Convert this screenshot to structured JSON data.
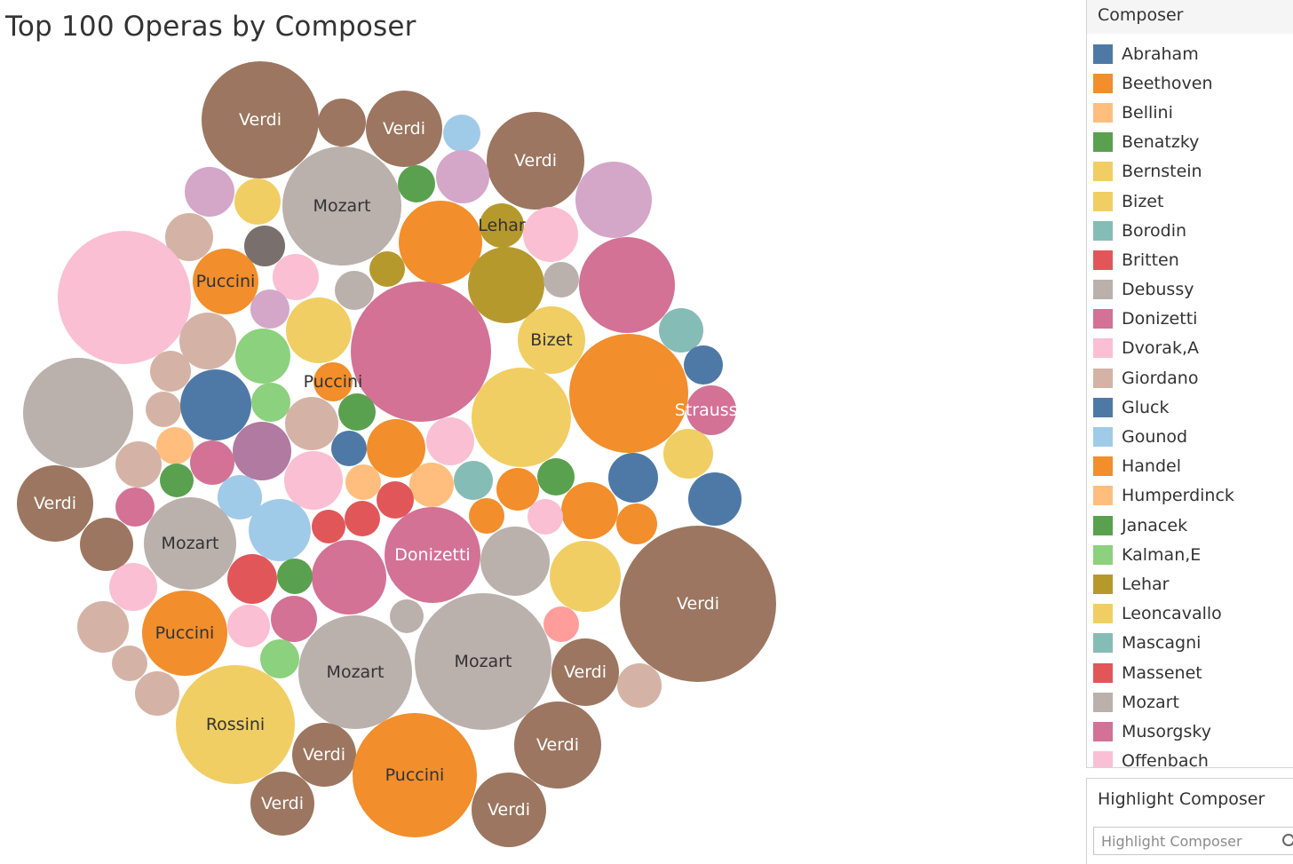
{
  "chart_data": {
    "type": "bubble",
    "title": "Top 100 Operas by Composer",
    "legend_placement": "right",
    "legend_title": "Composer",
    "legend": [
      {
        "name": "Abraham",
        "color": "#4e79a7"
      },
      {
        "name": "Beethoven",
        "color": "#f28e2b"
      },
      {
        "name": "Bellini",
        "color": "#ffbe7d"
      },
      {
        "name": "Benatzky",
        "color": "#59a14f"
      },
      {
        "name": "Bernstein",
        "color": "#f1ce63"
      },
      {
        "name": "Bizet",
        "color": "#f1ce63"
      },
      {
        "name": "Borodin",
        "color": "#86bcb6"
      },
      {
        "name": "Britten",
        "color": "#e15759"
      },
      {
        "name": "Debussy",
        "color": "#bab0ac"
      },
      {
        "name": "Donizetti",
        "color": "#d37295"
      },
      {
        "name": "Dvorak,A",
        "color": "#fabfd2"
      },
      {
        "name": "Giordano",
        "color": "#d4b3a6"
      },
      {
        "name": "Gluck",
        "color": "#4e79a7"
      },
      {
        "name": "Gounod",
        "color": "#a0cbe8"
      },
      {
        "name": "Handel",
        "color": "#f28e2b"
      },
      {
        "name": "Humperdinck",
        "color": "#ffbe7d"
      },
      {
        "name": "Janacek",
        "color": "#59a14f"
      },
      {
        "name": "Kalman,E",
        "color": "#8cd17d"
      },
      {
        "name": "Lehar",
        "color": "#b6992d"
      },
      {
        "name": "Leoncavallo",
        "color": "#f1ce63"
      },
      {
        "name": "Mascagni",
        "color": "#86bcb6"
      },
      {
        "name": "Massenet",
        "color": "#e15759"
      },
      {
        "name": "Mozart",
        "color": "#bab0ac"
      },
      {
        "name": "Musorgsky",
        "color": "#d37295"
      },
      {
        "name": "Offenbach",
        "color": "#fabfd2"
      }
    ],
    "bubbles": [
      {
        "label": "Verdi",
        "color": "#9c7660",
        "label_color": "#ffffff"
      },
      {
        "label": "",
        "color": "#9c7660"
      },
      {
        "label": "Verdi",
        "color": "#9c7660",
        "label_color": "#ffffff"
      },
      {
        "label": "",
        "color": "#a0cbe8"
      },
      {
        "label": "Verdi",
        "color": "#9c7660",
        "label_color": "#ffffff"
      },
      {
        "label": "",
        "color": "#d4a6c8"
      },
      {
        "label": "",
        "color": "#d4a6c8"
      },
      {
        "label": "",
        "color": "#f1ce63"
      },
      {
        "label": "Mozart",
        "color": "#bab0ac",
        "label_color": "#333333"
      },
      {
        "label": "",
        "color": "#59a14f"
      },
      {
        "label": "",
        "color": "#d4a6c8"
      },
      {
        "label": "",
        "color": "#d4b3a6"
      },
      {
        "label": "",
        "color": "#79706e"
      },
      {
        "label": "",
        "color": "#f28e2b"
      },
      {
        "label": "Lehar",
        "color": "#b6992d",
        "label_color": "#333333"
      },
      {
        "label": "",
        "color": "#fabfd2"
      },
      {
        "label": "",
        "color": "#fabfd2"
      },
      {
        "label": "Puccini",
        "color": "#f28e2b",
        "label_color": "#333333"
      },
      {
        "label": "",
        "color": "#fabfd2"
      },
      {
        "label": "",
        "color": "#bab0ac"
      },
      {
        "label": "",
        "color": "#b6992d"
      },
      {
        "label": "",
        "color": "#b6992d"
      },
      {
        "label": "",
        "color": "#f1ce63"
      },
      {
        "label": "",
        "color": "#d37295"
      },
      {
        "label": "",
        "color": "#d4a6c8"
      },
      {
        "label": "",
        "color": "#bab0ac"
      },
      {
        "label": "",
        "color": "#d37295"
      },
      {
        "label": "Bizet",
        "color": "#f1ce63",
        "label_color": "#333333"
      },
      {
        "label": "",
        "color": "#86bcb6"
      },
      {
        "label": "",
        "color": "#d4b3a6"
      },
      {
        "label": "",
        "color": "#8cd17d"
      },
      {
        "label": "",
        "color": "#4e79a7"
      },
      {
        "label": "",
        "color": "#d4b3a6"
      },
      {
        "label": "",
        "color": "#f28e2b"
      },
      {
        "label": "Puccini",
        "color": "#f28e2b",
        "label_color": "#333333"
      },
      {
        "label": "",
        "color": "#bab0ac"
      },
      {
        "label": "Strauss,J",
        "color": "#d37295",
        "label_color": "#ffffff"
      },
      {
        "label": "",
        "color": "#d4b3a6"
      },
      {
        "label": "",
        "color": "#4e79a7"
      },
      {
        "label": "",
        "color": "#8cd17d"
      },
      {
        "label": "",
        "color": "#d4b3a6"
      },
      {
        "label": "",
        "color": "#59a14f"
      },
      {
        "label": "",
        "color": "#f1ce63"
      },
      {
        "label": "",
        "color": "#ffbe7d"
      },
      {
        "label": "",
        "color": "#b07aa1"
      },
      {
        "label": "",
        "color": "#fabfd2"
      },
      {
        "label": "",
        "color": "#4e79a7"
      },
      {
        "label": "",
        "color": "#f28e2b"
      },
      {
        "label": "",
        "color": "#f1ce63"
      },
      {
        "label": "",
        "color": "#d4b3a6"
      },
      {
        "label": "",
        "color": "#d37295"
      },
      {
        "label": "",
        "color": "#59a14f"
      },
      {
        "label": "",
        "color": "#fabfd2"
      },
      {
        "label": "",
        "color": "#ffbe7d"
      },
      {
        "label": "",
        "color": "#ffbe7d"
      },
      {
        "label": "",
        "color": "#86bcb6"
      },
      {
        "label": "",
        "color": "#f28e2b"
      },
      {
        "label": "",
        "color": "#59a14f"
      },
      {
        "label": "",
        "color": "#4e79a7"
      },
      {
        "label": "",
        "color": "#f28e2b"
      },
      {
        "label": "",
        "color": "#4e79a7"
      },
      {
        "label": "Verdi",
        "color": "#9c7660",
        "label_color": "#ffffff"
      },
      {
        "label": "",
        "color": "#d37295"
      },
      {
        "label": "",
        "color": "#a0cbe8"
      },
      {
        "label": "Mozart",
        "color": "#bab0ac",
        "label_color": "#333333"
      },
      {
        "label": "",
        "color": "#a0cbe8"
      },
      {
        "label": "",
        "color": "#e15759"
      },
      {
        "label": "",
        "color": "#e15759"
      },
      {
        "label": "",
        "color": "#e15759"
      },
      {
        "label": "",
        "color": "#f28e2b"
      },
      {
        "label": "",
        "color": "#fabfd2"
      },
      {
        "label": "",
        "color": "#f28e2b"
      },
      {
        "label": "",
        "color": "#9c7660"
      },
      {
        "label": "",
        "color": "#fabfd2"
      },
      {
        "label": "",
        "color": "#d37295"
      },
      {
        "label": "Donizetti",
        "color": "#d37295",
        "label_color": "#ffffff"
      },
      {
        "label": "",
        "color": "#bab0ac"
      },
      {
        "label": "",
        "color": "#f1ce63"
      },
      {
        "label": "Verdi",
        "color": "#9c7660",
        "label_color": "#ffffff"
      },
      {
        "label": "",
        "color": "#e15759"
      },
      {
        "label": "",
        "color": "#59a14f"
      },
      {
        "label": "",
        "color": "#d37295"
      },
      {
        "label": "",
        "color": "#fabfd2"
      },
      {
        "label": "",
        "color": "#d37295"
      },
      {
        "label": "",
        "color": "#fabfd2"
      },
      {
        "label": "Puccini",
        "color": "#f28e2b",
        "label_color": "#333333"
      },
      {
        "label": "",
        "color": "#bab0ac"
      },
      {
        "label": "",
        "color": "#ff9d9a"
      },
      {
        "label": "",
        "color": "#d4b3a6"
      },
      {
        "label": "",
        "color": "#d4b3a6"
      },
      {
        "label": "",
        "color": "#8cd17d"
      },
      {
        "label": "Mozart",
        "color": "#bab0ac",
        "label_color": "#333333"
      },
      {
        "label": "Mozart",
        "color": "#bab0ac",
        "label_color": "#333333"
      },
      {
        "label": "Verdi",
        "color": "#9c7660",
        "label_color": "#ffffff"
      },
      {
        "label": "",
        "color": "#d4b3a6"
      },
      {
        "label": "",
        "color": "#d4b3a6"
      },
      {
        "label": "Rossini",
        "color": "#f1ce63",
        "label_color": "#333333"
      },
      {
        "label": "Verdi",
        "color": "#9c7660",
        "label_color": "#ffffff"
      },
      {
        "label": "Puccini",
        "color": "#f28e2b",
        "label_color": "#333333"
      },
      {
        "label": "Verdi",
        "color": "#9c7660",
        "label_color": "#ffffff"
      },
      {
        "label": "Verdi",
        "color": "#9c7660",
        "label_color": "#ffffff"
      },
      {
        "label": "Verdi",
        "color": "#9c7660",
        "label_color": "#ffffff"
      }
    ]
  },
  "highlight": {
    "title": "Highlight Composer",
    "placeholder": "Highlight Composer",
    "icon": "search-icon"
  }
}
